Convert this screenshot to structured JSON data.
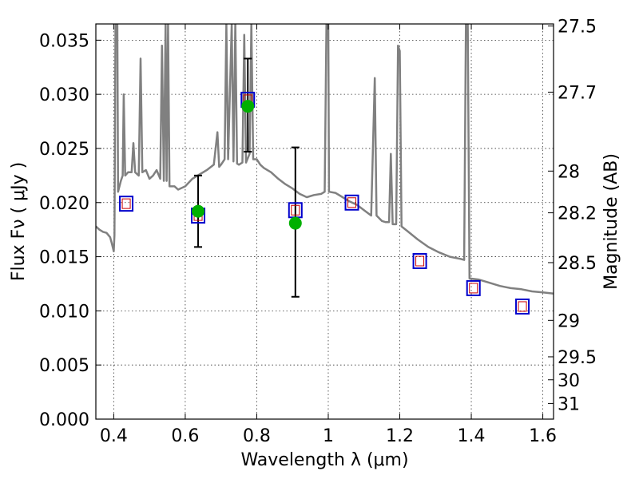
{
  "chart_data": {
    "type": "scatter",
    "xlabel": "Wavelength  λ (μm)",
    "ylabel": "Flux  Fν ( μJy )",
    "ylabel_right": "Magnitude (AB)",
    "xlim": [
      0.35,
      1.63
    ],
    "ylim": [
      0.0,
      0.0365
    ],
    "x_ticks": [
      0.4,
      0.6,
      0.8,
      1.0,
      1.2,
      1.4,
      1.6
    ],
    "x_tick_labels": [
      "0.4",
      "0.6",
      "0.8",
      "1",
      "1.2",
      "1.4",
      "1.6"
    ],
    "y_ticks": [
      0.0,
      0.005,
      0.01,
      0.015,
      0.02,
      0.025,
      0.03,
      0.035
    ],
    "y_tick_labels": [
      "0.000",
      "0.005",
      "0.010",
      "0.015",
      "0.020",
      "0.025",
      "0.030",
      "0.035"
    ],
    "right_ticks": [
      {
        "label": "27.5",
        "mag": 27.5
      },
      {
        "label": "27.7",
        "mag": 27.7
      },
      {
        "label": "28",
        "mag": 28.0
      },
      {
        "label": "28.2",
        "mag": 28.2
      },
      {
        "label": "28.5",
        "mag": 28.5
      },
      {
        "label": "29",
        "mag": 29.0
      },
      {
        "label": "29.5",
        "mag": 29.5
      },
      {
        "label": "30",
        "mag": 30.0
      },
      {
        "label": "31",
        "mag": 31.0
      }
    ],
    "grid": true,
    "colors": {
      "spectrum": "#808080",
      "observed": "#00b000",
      "model_box": "#0000cc",
      "model_inner": "#cc0000",
      "error": "#000000"
    },
    "series": [
      {
        "kind": "spectrum",
        "points": [
          [
            0.35,
            0.0178
          ],
          [
            0.36,
            0.0175
          ],
          [
            0.37,
            0.0173
          ],
          [
            0.38,
            0.0172
          ],
          [
            0.39,
            0.0168
          ],
          [
            0.395,
            0.0162
          ],
          [
            0.4,
            0.0155
          ],
          [
            0.402,
            0.017
          ],
          [
            0.405,
            0.0365
          ],
          [
            0.41,
            0.0365
          ],
          [
            0.412,
            0.021
          ],
          [
            0.42,
            0.022
          ],
          [
            0.425,
            0.0225
          ],
          [
            0.428,
            0.03
          ],
          [
            0.432,
            0.0225
          ],
          [
            0.44,
            0.0228
          ],
          [
            0.45,
            0.0228
          ],
          [
            0.455,
            0.0255
          ],
          [
            0.46,
            0.0228
          ],
          [
            0.47,
            0.0225
          ],
          [
            0.475,
            0.0333
          ],
          [
            0.48,
            0.0228
          ],
          [
            0.49,
            0.023
          ],
          [
            0.5,
            0.0222
          ],
          [
            0.51,
            0.0225
          ],
          [
            0.52,
            0.023
          ],
          [
            0.53,
            0.0222
          ],
          [
            0.535,
            0.0345
          ],
          [
            0.54,
            0.022
          ],
          [
            0.545,
            0.0365
          ],
          [
            0.548,
            0.022
          ],
          [
            0.552,
            0.0365
          ],
          [
            0.556,
            0.0215
          ],
          [
            0.57,
            0.0215
          ],
          [
            0.58,
            0.0212
          ],
          [
            0.6,
            0.0215
          ],
          [
            0.62,
            0.0222
          ],
          [
            0.64,
            0.0226
          ],
          [
            0.66,
            0.023
          ],
          [
            0.68,
            0.0235
          ],
          [
            0.69,
            0.0265
          ],
          [
            0.695,
            0.0233
          ],
          [
            0.7,
            0.0235
          ],
          [
            0.71,
            0.024
          ],
          [
            0.715,
            0.0365
          ],
          [
            0.72,
            0.024
          ],
          [
            0.73,
            0.0365
          ],
          [
            0.735,
            0.0238
          ],
          [
            0.74,
            0.0365
          ],
          [
            0.745,
            0.0236
          ],
          [
            0.75,
            0.0235
          ],
          [
            0.76,
            0.0237
          ],
          [
            0.765,
            0.0355
          ],
          [
            0.77,
            0.0237
          ],
          [
            0.78,
            0.0245
          ],
          [
            0.785,
            0.0365
          ],
          [
            0.79,
            0.024
          ],
          [
            0.8,
            0.024
          ],
          [
            0.81,
            0.0235
          ],
          [
            0.82,
            0.0232
          ],
          [
            0.84,
            0.0228
          ],
          [
            0.86,
            0.0222
          ],
          [
            0.88,
            0.0217
          ],
          [
            0.9,
            0.0213
          ],
          [
            0.92,
            0.0208
          ],
          [
            0.94,
            0.0205
          ],
          [
            0.96,
            0.0207
          ],
          [
            0.98,
            0.0208
          ],
          [
            0.99,
            0.021
          ],
          [
            0.995,
            0.0365
          ],
          [
            1.0,
            0.0365
          ],
          [
            1.002,
            0.021
          ],
          [
            1.02,
            0.0209
          ],
          [
            1.04,
            0.0205
          ],
          [
            1.06,
            0.0201
          ],
          [
            1.08,
            0.0198
          ],
          [
            1.1,
            0.0193
          ],
          [
            1.12,
            0.0188
          ],
          [
            1.13,
            0.0315
          ],
          [
            1.135,
            0.0188
          ],
          [
            1.15,
            0.0183
          ],
          [
            1.16,
            0.0182
          ],
          [
            1.17,
            0.0182
          ],
          [
            1.175,
            0.0245
          ],
          [
            1.18,
            0.018
          ],
          [
            1.19,
            0.018
          ],
          [
            1.195,
            0.0345
          ],
          [
            1.2,
            0.034
          ],
          [
            1.205,
            0.0178
          ],
          [
            1.22,
            0.0174
          ],
          [
            1.25,
            0.0166
          ],
          [
            1.28,
            0.0159
          ],
          [
            1.31,
            0.0154
          ],
          [
            1.34,
            0.015
          ],
          [
            1.37,
            0.0148
          ],
          [
            1.38,
            0.0147
          ],
          [
            1.385,
            0.0365
          ],
          [
            1.39,
            0.0365
          ],
          [
            1.395,
            0.013
          ],
          [
            1.42,
            0.0129
          ],
          [
            1.45,
            0.0126
          ],
          [
            1.48,
            0.0123
          ],
          [
            1.51,
            0.0121
          ],
          [
            1.54,
            0.012
          ],
          [
            1.57,
            0.0118
          ],
          [
            1.6,
            0.0117
          ],
          [
            1.63,
            0.0116
          ]
        ]
      },
      {
        "kind": "model",
        "points": [
          {
            "x": 0.435,
            "y": 0.0199
          },
          {
            "x": 0.636,
            "y": 0.0188
          },
          {
            "x": 0.775,
            "y": 0.0295
          },
          {
            "x": 0.908,
            "y": 0.0193
          },
          {
            "x": 1.066,
            "y": 0.02
          },
          {
            "x": 1.256,
            "y": 0.0146
          },
          {
            "x": 1.406,
            "y": 0.0121
          },
          {
            "x": 1.543,
            "y": 0.0104
          }
        ]
      },
      {
        "kind": "observed",
        "points": [
          {
            "x": 0.636,
            "y": 0.0192,
            "ylo": 0.0159,
            "yhi": 0.0225
          },
          {
            "x": 0.775,
            "y": 0.0289,
            "ylo": 0.0247,
            "yhi": 0.0333
          },
          {
            "x": 0.908,
            "y": 0.0181,
            "ylo": 0.0113,
            "yhi": 0.0251
          }
        ]
      }
    ]
  }
}
